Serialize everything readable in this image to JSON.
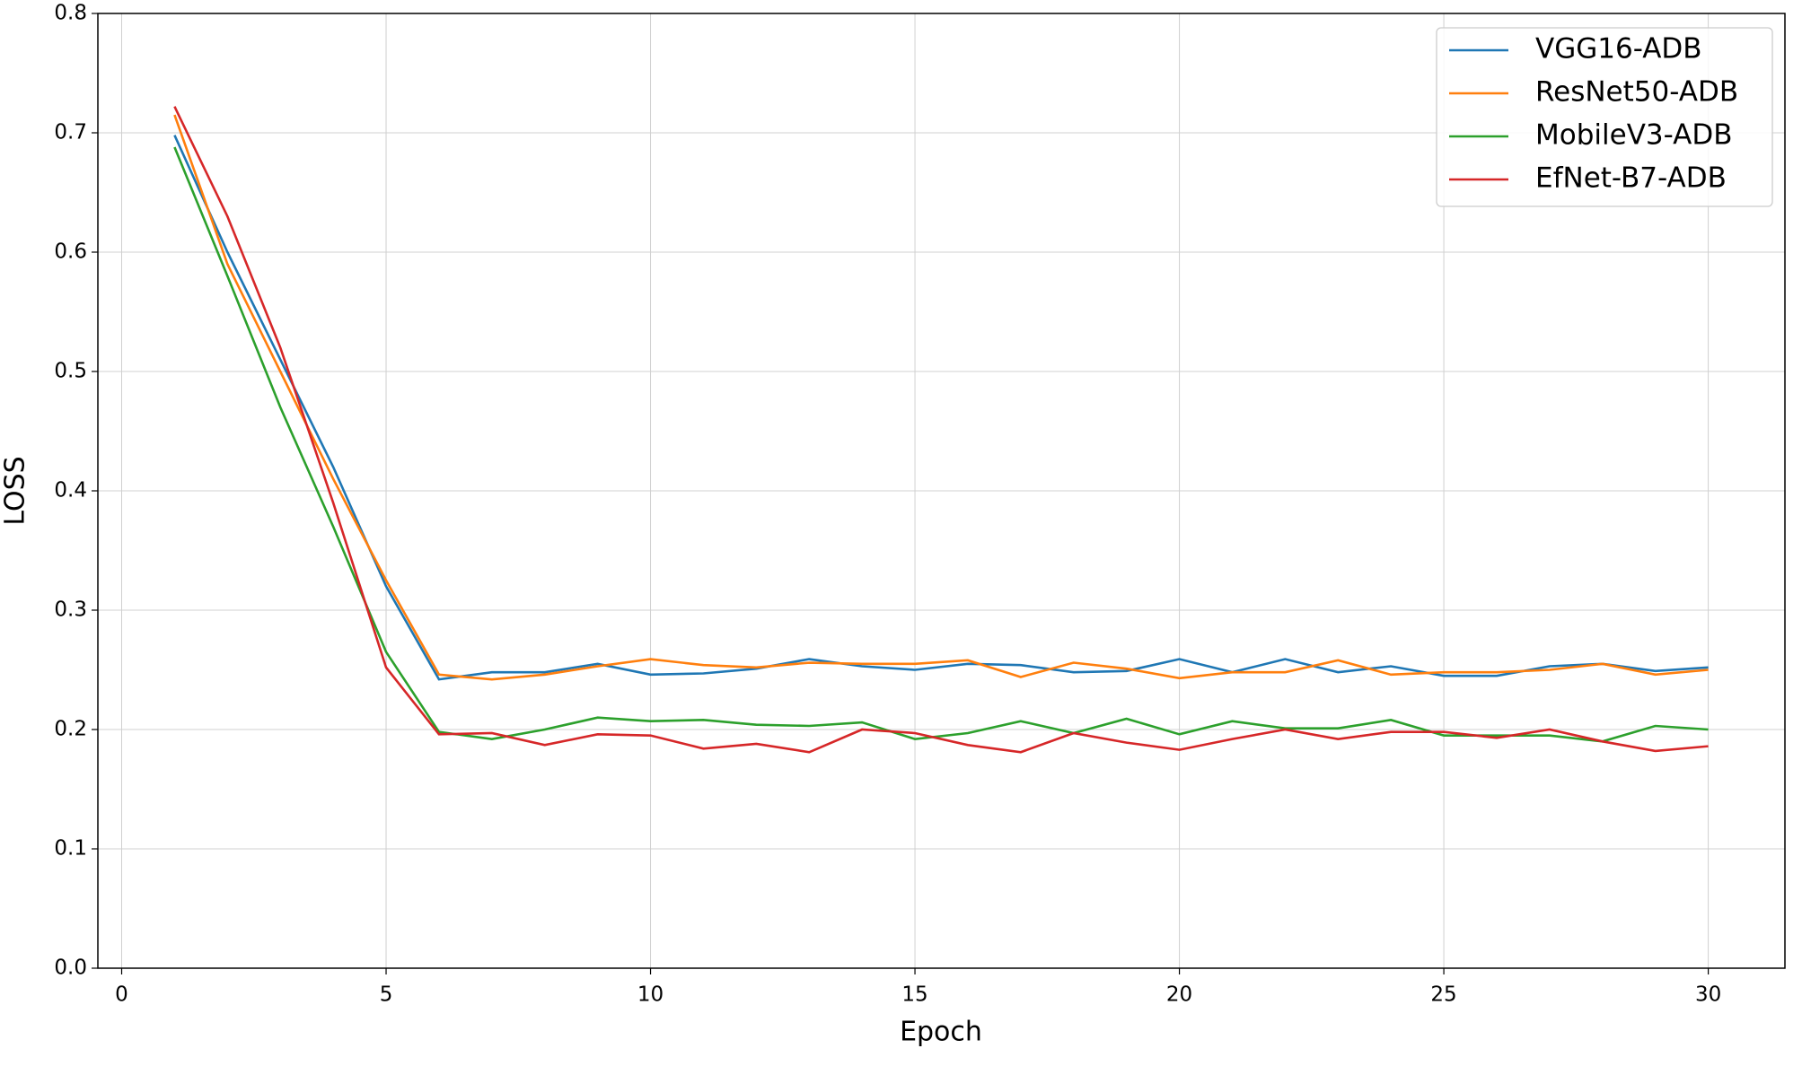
{
  "chart_data": {
    "type": "line",
    "x_label": "Epoch",
    "y_label": "LOSS",
    "x": [
      1,
      2,
      3,
      4,
      5,
      6,
      7,
      8,
      9,
      10,
      11,
      12,
      13,
      14,
      15,
      16,
      17,
      18,
      19,
      20,
      21,
      22,
      23,
      24,
      25,
      26,
      27,
      28,
      29,
      30
    ],
    "series": [
      {
        "name": "VGG16-ADB",
        "color": "#1f77b4",
        "values": [
          0.698,
          0.6,
          0.51,
          0.42,
          0.32,
          0.242,
          0.248,
          0.248,
          0.255,
          0.246,
          0.247,
          0.251,
          0.259,
          0.253,
          0.25,
          0.255,
          0.254,
          0.248,
          0.249,
          0.259,
          0.248,
          0.259,
          0.248,
          0.253,
          0.245,
          0.245,
          0.253,
          0.255,
          0.249,
          0.252
        ]
      },
      {
        "name": "ResNet50-ADB",
        "color": "#ff7f0e",
        "values": [
          0.715,
          0.59,
          0.5,
          0.41,
          0.325,
          0.246,
          0.242,
          0.246,
          0.253,
          0.259,
          0.254,
          0.252,
          0.256,
          0.255,
          0.255,
          0.258,
          0.244,
          0.256,
          0.251,
          0.243,
          0.248,
          0.248,
          0.258,
          0.246,
          0.248,
          0.248,
          0.25,
          0.255,
          0.246,
          0.25
        ]
      },
      {
        "name": "MobileV3-ADB",
        "color": "#2ca02c",
        "values": [
          0.688,
          0.58,
          0.47,
          0.37,
          0.265,
          0.198,
          0.192,
          0.2,
          0.21,
          0.207,
          0.208,
          0.204,
          0.203,
          0.206,
          0.192,
          0.197,
          0.207,
          0.197,
          0.209,
          0.196,
          0.207,
          0.201,
          0.201,
          0.208,
          0.195,
          0.195,
          0.195,
          0.19,
          0.203,
          0.2
        ]
      },
      {
        "name": "EfNet-B7-ADB",
        "color": "#d62728",
        "values": [
          0.722,
          0.63,
          0.52,
          0.39,
          0.252,
          0.196,
          0.197,
          0.187,
          0.196,
          0.195,
          0.184,
          0.188,
          0.181,
          0.2,
          0.197,
          0.187,
          0.181,
          0.197,
          0.189,
          0.183,
          0.192,
          0.2,
          0.192,
          0.198,
          0.198,
          0.193,
          0.2,
          0.19,
          0.182,
          0.186
        ]
      }
    ],
    "xlim": [
      -0.45,
      31.45
    ],
    "xticks": [
      0,
      5,
      10,
      15,
      20,
      25,
      30
    ],
    "ylim": [
      0,
      0.8
    ],
    "yticks": [
      {
        "value": 0,
        "label": "0.0"
      },
      0.1,
      0.2,
      0.3,
      0.4,
      0.5,
      0.6,
      0.7,
      0.8
    ],
    "grid": true,
    "legend": "upper-right"
  }
}
